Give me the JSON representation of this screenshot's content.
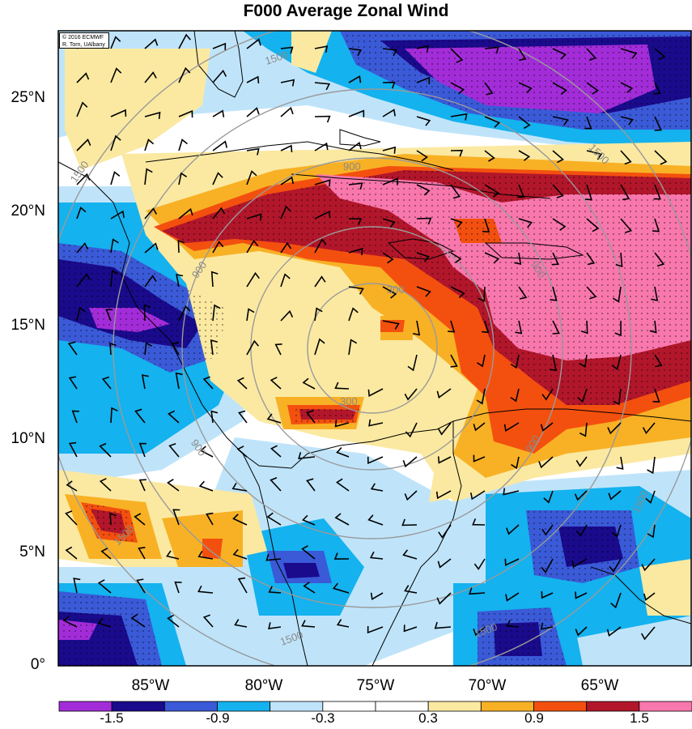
{
  "title": "F000 Average Zonal Wind",
  "credit": {
    "line1": "© 2016 ECMWF",
    "line2": "R. Torn, UAlbany"
  },
  "lat_labels": [
    "25°N",
    "20°N",
    "15°N",
    "10°N",
    "5°N",
    "0°"
  ],
  "lon_labels": [
    "85°W",
    "80°W",
    "75°W",
    "70°W",
    "65°W"
  ],
  "radius_labels": [
    "300",
    "300",
    "900",
    "900",
    "900",
    "900",
    "900",
    "1500",
    "1500",
    "1500",
    "1500",
    "1500",
    "1500",
    "1500"
  ],
  "colorbar": {
    "colors": [
      "#a32cd9",
      "#1a0a8c",
      "#3a5ad8",
      "#14b2ee",
      "#bfe4fa",
      "#ffffff",
      "#ffffff",
      "#fbe9a1",
      "#f8b125",
      "#f3500f",
      "#b2162a",
      "#f877ad"
    ],
    "labels": [
      "-1.5",
      "-0.9",
      "-0.3",
      "0.3",
      "0.9",
      "1.5"
    ]
  },
  "palette": {
    "dark_purple": "#a32cd9",
    "navy": "#1a0a8c",
    "royal_blue": "#3a5ad8",
    "sky_blue": "#14b2ee",
    "pale_blue": "#bfe4fa",
    "cream": "#fbe9a1",
    "orange": "#f8b125",
    "red_orange": "#f3500f",
    "dark_red": "#b2162a",
    "pink": "#f877ad"
  }
}
